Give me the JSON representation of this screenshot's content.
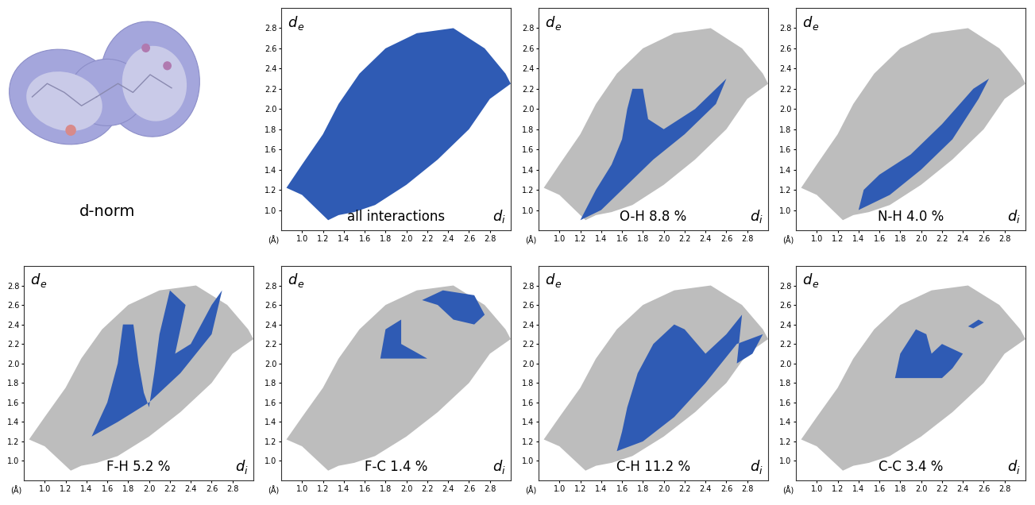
{
  "surface_image": {
    "label": "d-norm"
  },
  "chart_data": [
    {
      "type": "fingerprint",
      "title": "all interactions",
      "xlabel": "di",
      "ylabel": "de",
      "annotations": [
        "(Å)"
      ],
      "xlim": [
        0.8,
        3.0
      ],
      "ylim": [
        0.8,
        3.0
      ],
      "xticks": [
        1.0,
        1.2,
        1.4,
        1.6,
        1.8,
        2.0,
        2.2,
        2.4,
        2.6,
        2.8
      ],
      "yticks": [
        1.0,
        1.2,
        1.4,
        1.6,
        1.8,
        2.0,
        2.2,
        2.4,
        2.6,
        2.8
      ],
      "color": "#2f5bb4",
      "regions": [
        {
          "x": [
            0.85,
            1.0,
            1.2,
            1.35,
            1.55,
            1.8,
            2.1,
            2.45,
            2.75,
            2.95,
            3.0,
            2.8,
            2.6,
            2.3,
            2.0,
            1.7,
            1.5,
            1.35,
            1.25,
            1.15,
            1.0
          ],
          "y": [
            1.22,
            1.45,
            1.75,
            2.05,
            2.35,
            2.6,
            2.75,
            2.8,
            2.6,
            2.35,
            2.25,
            2.1,
            1.8,
            1.5,
            1.25,
            1.05,
            0.98,
            0.95,
            0.9,
            1.0,
            1.15
          ]
        }
      ]
    },
    {
      "type": "fingerprint",
      "title": "O-H 8.8 %",
      "xlabel": "di",
      "ylabel": "de",
      "annotations": [
        "(Å)"
      ],
      "xlim": [
        0.8,
        3.0
      ],
      "ylim": [
        0.8,
        3.0
      ],
      "xticks": [
        1.0,
        1.2,
        1.4,
        1.6,
        1.8,
        2.0,
        2.2,
        2.4,
        2.6,
        2.8
      ],
      "yticks": [
        1.0,
        1.2,
        1.4,
        1.6,
        1.8,
        2.0,
        2.2,
        2.4,
        2.6,
        2.8
      ],
      "color": "#2f5bb4",
      "background": {
        "color": "#bdbdbd",
        "x": [
          0.85,
          1.0,
          1.2,
          1.35,
          1.55,
          1.8,
          2.1,
          2.45,
          2.75,
          2.95,
          3.0,
          2.8,
          2.6,
          2.3,
          2.0,
          1.7,
          1.5,
          1.35,
          1.25,
          1.15,
          1.0
        ],
        "y": [
          1.22,
          1.45,
          1.75,
          2.05,
          2.35,
          2.6,
          2.75,
          2.8,
          2.6,
          2.35,
          2.25,
          2.1,
          1.8,
          1.5,
          1.25,
          1.05,
          0.98,
          0.95,
          0.9,
          1.0,
          1.15
        ]
      },
      "regions": [
        {
          "x": [
            1.2,
            1.35,
            1.5,
            1.6,
            1.65,
            1.7,
            1.8,
            1.85,
            2.0,
            2.3,
            2.5,
            2.6,
            2.5,
            2.2,
            1.9,
            1.6,
            1.4
          ],
          "y": [
            0.9,
            1.2,
            1.45,
            1.7,
            2.0,
            2.2,
            2.2,
            1.9,
            1.8,
            2.0,
            2.2,
            2.3,
            2.05,
            1.75,
            1.5,
            1.2,
            1.0
          ]
        }
      ]
    },
    {
      "type": "fingerprint",
      "title": "N-H 4.0 %",
      "xlabel": "di",
      "ylabel": "de",
      "annotations": [
        "(Å)"
      ],
      "xlim": [
        0.8,
        3.0
      ],
      "ylim": [
        0.8,
        3.0
      ],
      "xticks": [
        1.0,
        1.2,
        1.4,
        1.6,
        1.8,
        2.0,
        2.2,
        2.4,
        2.6,
        2.8
      ],
      "yticks": [
        1.0,
        1.2,
        1.4,
        1.6,
        1.8,
        2.0,
        2.2,
        2.4,
        2.6,
        2.8
      ],
      "color": "#2f5bb4",
      "background": {
        "color": "#bdbdbd",
        "x": [
          0.85,
          1.0,
          1.2,
          1.35,
          1.55,
          1.8,
          2.1,
          2.45,
          2.75,
          2.95,
          3.0,
          2.8,
          2.6,
          2.3,
          2.0,
          1.7,
          1.5,
          1.35,
          1.25,
          1.15,
          1.0
        ],
        "y": [
          1.22,
          1.45,
          1.75,
          2.05,
          2.35,
          2.6,
          2.75,
          2.8,
          2.6,
          2.35,
          2.25,
          2.1,
          1.8,
          1.5,
          1.25,
          1.05,
          0.98,
          0.95,
          0.9,
          1.0,
          1.15
        ]
      },
      "regions": [
        {
          "x": [
            1.4,
            1.7,
            2.0,
            2.3,
            2.55,
            2.65,
            2.5,
            2.2,
            1.9,
            1.6,
            1.45
          ],
          "y": [
            1.0,
            1.15,
            1.4,
            1.7,
            2.1,
            2.3,
            2.2,
            1.85,
            1.55,
            1.35,
            1.2
          ]
        }
      ]
    },
    {
      "type": "fingerprint",
      "title": "F-H 5.2 %",
      "xlabel": "di",
      "ylabel": "de",
      "annotations": [
        "(Å)"
      ],
      "xlim": [
        0.8,
        3.0
      ],
      "ylim": [
        0.8,
        3.0
      ],
      "xticks": [
        1.0,
        1.2,
        1.4,
        1.6,
        1.8,
        2.0,
        2.2,
        2.4,
        2.6,
        2.8
      ],
      "yticks": [
        1.0,
        1.2,
        1.4,
        1.6,
        1.8,
        2.0,
        2.2,
        2.4,
        2.6,
        2.8
      ],
      "color": "#2f5bb4",
      "background": {
        "color": "#bdbdbd",
        "x": [
          0.85,
          1.0,
          1.2,
          1.35,
          1.55,
          1.8,
          2.1,
          2.45,
          2.75,
          2.95,
          3.0,
          2.8,
          2.6,
          2.3,
          2.0,
          1.7,
          1.5,
          1.35,
          1.25,
          1.15,
          1.0
        ],
        "y": [
          1.22,
          1.45,
          1.75,
          2.05,
          2.35,
          2.6,
          2.75,
          2.8,
          2.6,
          2.35,
          2.25,
          2.1,
          1.8,
          1.5,
          1.25,
          1.05,
          0.98,
          0.95,
          0.9,
          1.0,
          1.15
        ]
      },
      "regions": [
        {
          "x": [
            1.45,
            1.6,
            1.7,
            1.75,
            1.85,
            1.9,
            1.95,
            2.0,
            2.05,
            2.1,
            2.2,
            2.35,
            2.25,
            2.4,
            2.6,
            2.7,
            2.6,
            2.3,
            2.0,
            1.7
          ],
          "y": [
            1.25,
            1.6,
            2.0,
            2.4,
            2.4,
            2.0,
            1.7,
            1.55,
            1.9,
            2.3,
            2.75,
            2.6,
            2.1,
            2.2,
            2.6,
            2.75,
            2.3,
            1.9,
            1.6,
            1.4
          ]
        }
      ]
    },
    {
      "type": "fingerprint",
      "title": "F-C 1.4 %",
      "xlabel": "di",
      "ylabel": "de",
      "annotations": [
        "(Å)"
      ],
      "xlim": [
        0.8,
        3.0
      ],
      "ylim": [
        0.8,
        3.0
      ],
      "xticks": [
        1.0,
        1.2,
        1.4,
        1.6,
        1.8,
        2.0,
        2.2,
        2.4,
        2.6,
        2.8
      ],
      "yticks": [
        1.0,
        1.2,
        1.4,
        1.6,
        1.8,
        2.0,
        2.2,
        2.4,
        2.6,
        2.8
      ],
      "color": "#2f5bb4",
      "background": {
        "color": "#bdbdbd",
        "x": [
          0.85,
          1.0,
          1.2,
          1.35,
          1.55,
          1.8,
          2.1,
          2.45,
          2.75,
          2.95,
          3.0,
          2.8,
          2.6,
          2.3,
          2.0,
          1.7,
          1.5,
          1.35,
          1.25,
          1.15,
          1.0
        ],
        "y": [
          1.22,
          1.45,
          1.75,
          2.05,
          2.35,
          2.6,
          2.75,
          2.8,
          2.6,
          2.35,
          2.25,
          2.1,
          1.8,
          1.5,
          1.25,
          1.05,
          0.98,
          0.95,
          0.9,
          1.0,
          1.15
        ]
      },
      "regions": [
        {
          "x": [
            1.75,
            1.8,
            1.95,
            1.95,
            2.2,
            1.85
          ],
          "y": [
            2.05,
            2.35,
            2.45,
            2.2,
            2.05,
            2.05
          ]
        },
        {
          "x": [
            2.15,
            2.35,
            2.65,
            2.75,
            2.65,
            2.45,
            2.3
          ],
          "y": [
            2.65,
            2.75,
            2.7,
            2.5,
            2.4,
            2.45,
            2.6
          ]
        }
      ]
    },
    {
      "type": "fingerprint",
      "title": "C-H 11.2 %",
      "xlabel": "di",
      "ylabel": "de",
      "annotations": [
        "(Å)"
      ],
      "xlim": [
        0.8,
        3.0
      ],
      "ylim": [
        0.8,
        3.0
      ],
      "xticks": [
        1.0,
        1.2,
        1.4,
        1.6,
        1.8,
        2.0,
        2.2,
        2.4,
        2.6,
        2.8
      ],
      "yticks": [
        1.0,
        1.2,
        1.4,
        1.6,
        1.8,
        2.0,
        2.2,
        2.4,
        2.6,
        2.8
      ],
      "color": "#2f5bb4",
      "background": {
        "color": "#bdbdbd",
        "x": [
          0.85,
          1.0,
          1.2,
          1.35,
          1.55,
          1.8,
          2.1,
          2.45,
          2.75,
          2.95,
          3.0,
          2.8,
          2.6,
          2.3,
          2.0,
          1.7,
          1.5,
          1.35,
          1.25,
          1.15,
          1.0
        ],
        "y": [
          1.22,
          1.45,
          1.75,
          2.05,
          2.35,
          2.6,
          2.75,
          2.8,
          2.6,
          2.35,
          2.25,
          2.1,
          1.8,
          1.5,
          1.25,
          1.05,
          0.98,
          0.95,
          0.9,
          1.0,
          1.15
        ]
      },
      "regions": [
        {
          "x": [
            1.55,
            1.8,
            2.1,
            2.4,
            2.7,
            2.95,
            2.85,
            2.7,
            2.75,
            2.6,
            2.4,
            2.2,
            2.1,
            1.9,
            1.75,
            1.65,
            1.6
          ],
          "y": [
            1.1,
            1.2,
            1.45,
            1.8,
            2.2,
            2.3,
            2.1,
            2.0,
            2.5,
            2.3,
            2.1,
            2.35,
            2.4,
            2.2,
            1.9,
            1.55,
            1.3
          ]
        }
      ]
    },
    {
      "type": "fingerprint",
      "title": "C-C 3.4 %",
      "xlabel": "di",
      "ylabel": "de",
      "annotations": [
        "(Å)"
      ],
      "xlim": [
        0.8,
        3.0
      ],
      "ylim": [
        0.8,
        3.0
      ],
      "xticks": [
        1.0,
        1.2,
        1.4,
        1.6,
        1.8,
        2.0,
        2.2,
        2.4,
        2.6,
        2.8
      ],
      "yticks": [
        1.0,
        1.2,
        1.4,
        1.6,
        1.8,
        2.0,
        2.2,
        2.4,
        2.6,
        2.8
      ],
      "color": "#2f5bb4",
      "background": {
        "color": "#bdbdbd",
        "x": [
          0.85,
          1.0,
          1.2,
          1.35,
          1.55,
          1.8,
          2.1,
          2.45,
          2.75,
          2.95,
          3.0,
          2.8,
          2.6,
          2.3,
          2.0,
          1.7,
          1.5,
          1.35,
          1.25,
          1.15,
          1.0
        ],
        "y": [
          1.22,
          1.45,
          1.75,
          2.05,
          2.35,
          2.6,
          2.75,
          2.8,
          2.6,
          2.35,
          2.25,
          2.1,
          1.8,
          1.5,
          1.25,
          1.05,
          0.98,
          0.95,
          0.9,
          1.0,
          1.15
        ]
      },
      "regions": [
        {
          "x": [
            1.75,
            1.8,
            1.95,
            2.05,
            2.1,
            2.2,
            2.4,
            2.3,
            2.2,
            2.0
          ],
          "y": [
            1.85,
            2.1,
            2.35,
            2.3,
            2.1,
            2.2,
            2.1,
            1.95,
            1.85,
            1.85
          ]
        },
        {
          "x": [
            2.45,
            2.55,
            2.6,
            2.5
          ],
          "y": [
            2.38,
            2.45,
            2.42,
            2.36
          ]
        }
      ]
    }
  ]
}
